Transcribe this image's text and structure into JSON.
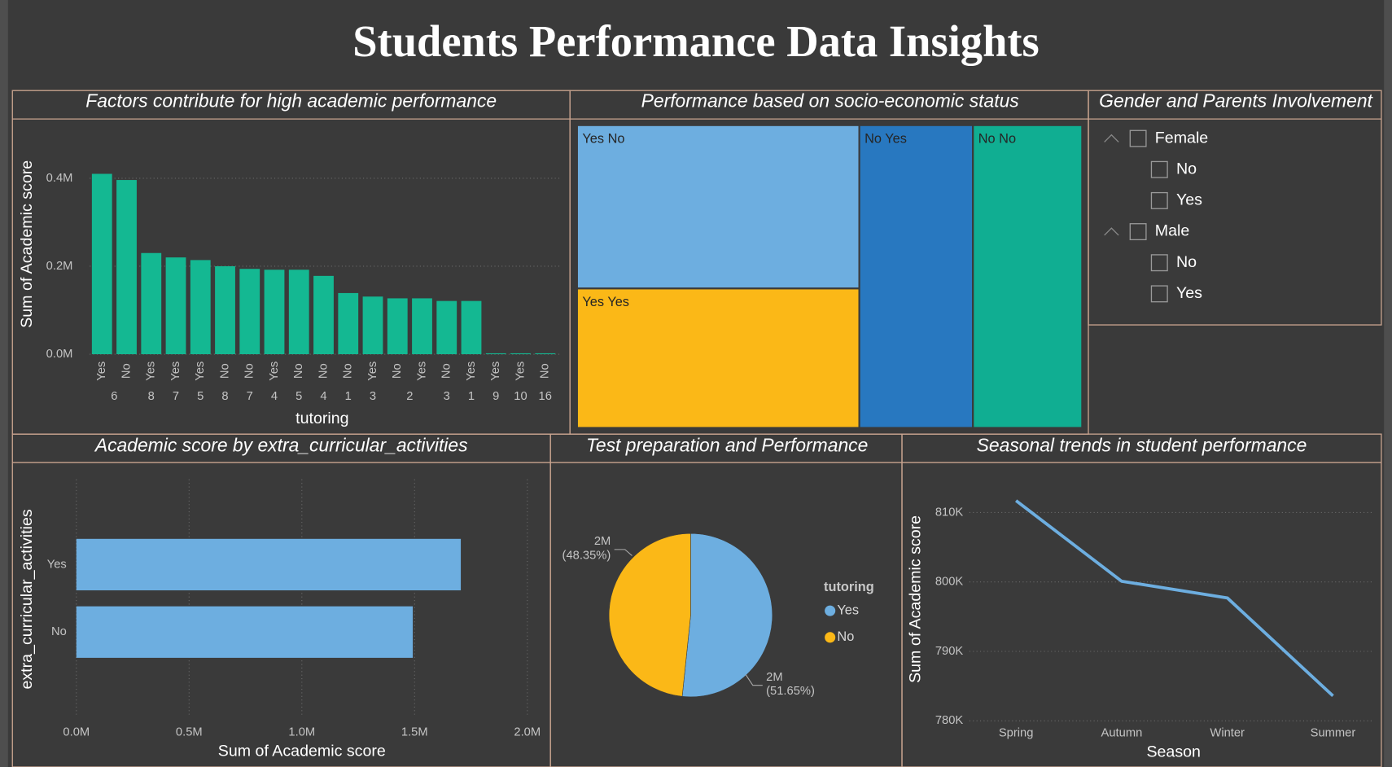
{
  "header": {
    "title": "Students Performance Data Insights"
  },
  "chart_data": [
    {
      "type": "bar",
      "title": "Factors contribute for high academic performance",
      "x_label": "tutoring",
      "y_label": "Sum of Academic score",
      "categories": [
        "Yes",
        "No",
        "Yes",
        "Yes",
        "Yes",
        "No",
        "No",
        "Yes",
        "No",
        "No",
        "No",
        "Yes",
        "No",
        "Yes",
        "No",
        "Yes",
        "Yes",
        "Yes",
        "No"
      ],
      "groups": [
        "6",
        null,
        "8",
        "7",
        "5",
        "8",
        "7",
        "4",
        "5",
        "4",
        "1",
        "3",
        "2",
        null,
        "3",
        "1",
        "9",
        "10",
        "16"
      ],
      "values": [
        410000,
        396000,
        230000,
        220000,
        214000,
        200000,
        194000,
        192000,
        192000,
        178000,
        139000,
        131000,
        127000,
        127000,
        121000,
        121000,
        2000,
        2000,
        2000
      ],
      "color": "#14b892",
      "ylim": [
        0,
        450000
      ],
      "yticks": [
        {
          "value": 0,
          "label": "0.0M"
        },
        {
          "value": 200000,
          "label": "0.2M"
        },
        {
          "value": 400000,
          "label": "0.4M"
        }
      ],
      "grid": true
    },
    {
      "type": "treemap",
      "title": "Performance based on socio-economic status",
      "categories": [
        "Yes No",
        "Yes Yes",
        "No Yes",
        "No No"
      ],
      "values": [
        962000,
        821000,
        718000,
        690000
      ],
      "colors": [
        "#6daee0",
        "#fbb817",
        "#2878c0",
        "#10ae92"
      ]
    },
    {
      "type": "hbar",
      "title": "Academic score by extra_curricular_activities",
      "x_label": "Sum of Academic score",
      "y_label": "extra_curricular_activities",
      "categories": [
        "Yes",
        "No"
      ],
      "values": [
        1705000,
        1492000
      ],
      "color": "#6daee0",
      "xlim": [
        0,
        2000000
      ],
      "xticks": [
        {
          "value": 0,
          "label": "0.0M"
        },
        {
          "value": 500000,
          "label": "0.5M"
        },
        {
          "value": 1000000,
          "label": "1.0M"
        },
        {
          "value": 1500000,
          "label": "1.5M"
        },
        {
          "value": 2000000,
          "label": "2.0M"
        }
      ],
      "grid": true
    },
    {
      "type": "pie",
      "title": "Test preparation and Performance",
      "legend_title": "tutoring",
      "categories": [
        "Yes",
        "No"
      ],
      "values": [
        1652000,
        1546500
      ],
      "value_labels": [
        "2M",
        "2M"
      ],
      "percent_labels": [
        "(51.65%)",
        "(48.35%)"
      ],
      "colors": [
        "#6daee0",
        "#fbb817"
      ]
    },
    {
      "type": "line",
      "title": "Seasonal trends in student performance",
      "x_label": "Season",
      "y_label": "Sum of Academic score",
      "categories": [
        "Spring",
        "Autumn",
        "Winter",
        "Summer"
      ],
      "values": [
        811700,
        800100,
        797700,
        783600
      ],
      "color": "#6daee0",
      "ylim": [
        780000,
        814000
      ],
      "yticks": [
        {
          "value": 780000,
          "label": "780K"
        },
        {
          "value": 790000,
          "label": "790K"
        },
        {
          "value": 800000,
          "label": "800K"
        },
        {
          "value": 810000,
          "label": "810K"
        }
      ],
      "grid": true
    }
  ],
  "slicer": {
    "title": "Gender and Parents Involvement",
    "items": [
      {
        "label": "Female",
        "children": [
          "No",
          "Yes"
        ]
      },
      {
        "label": "Male",
        "children": [
          "No",
          "Yes"
        ]
      }
    ]
  }
}
